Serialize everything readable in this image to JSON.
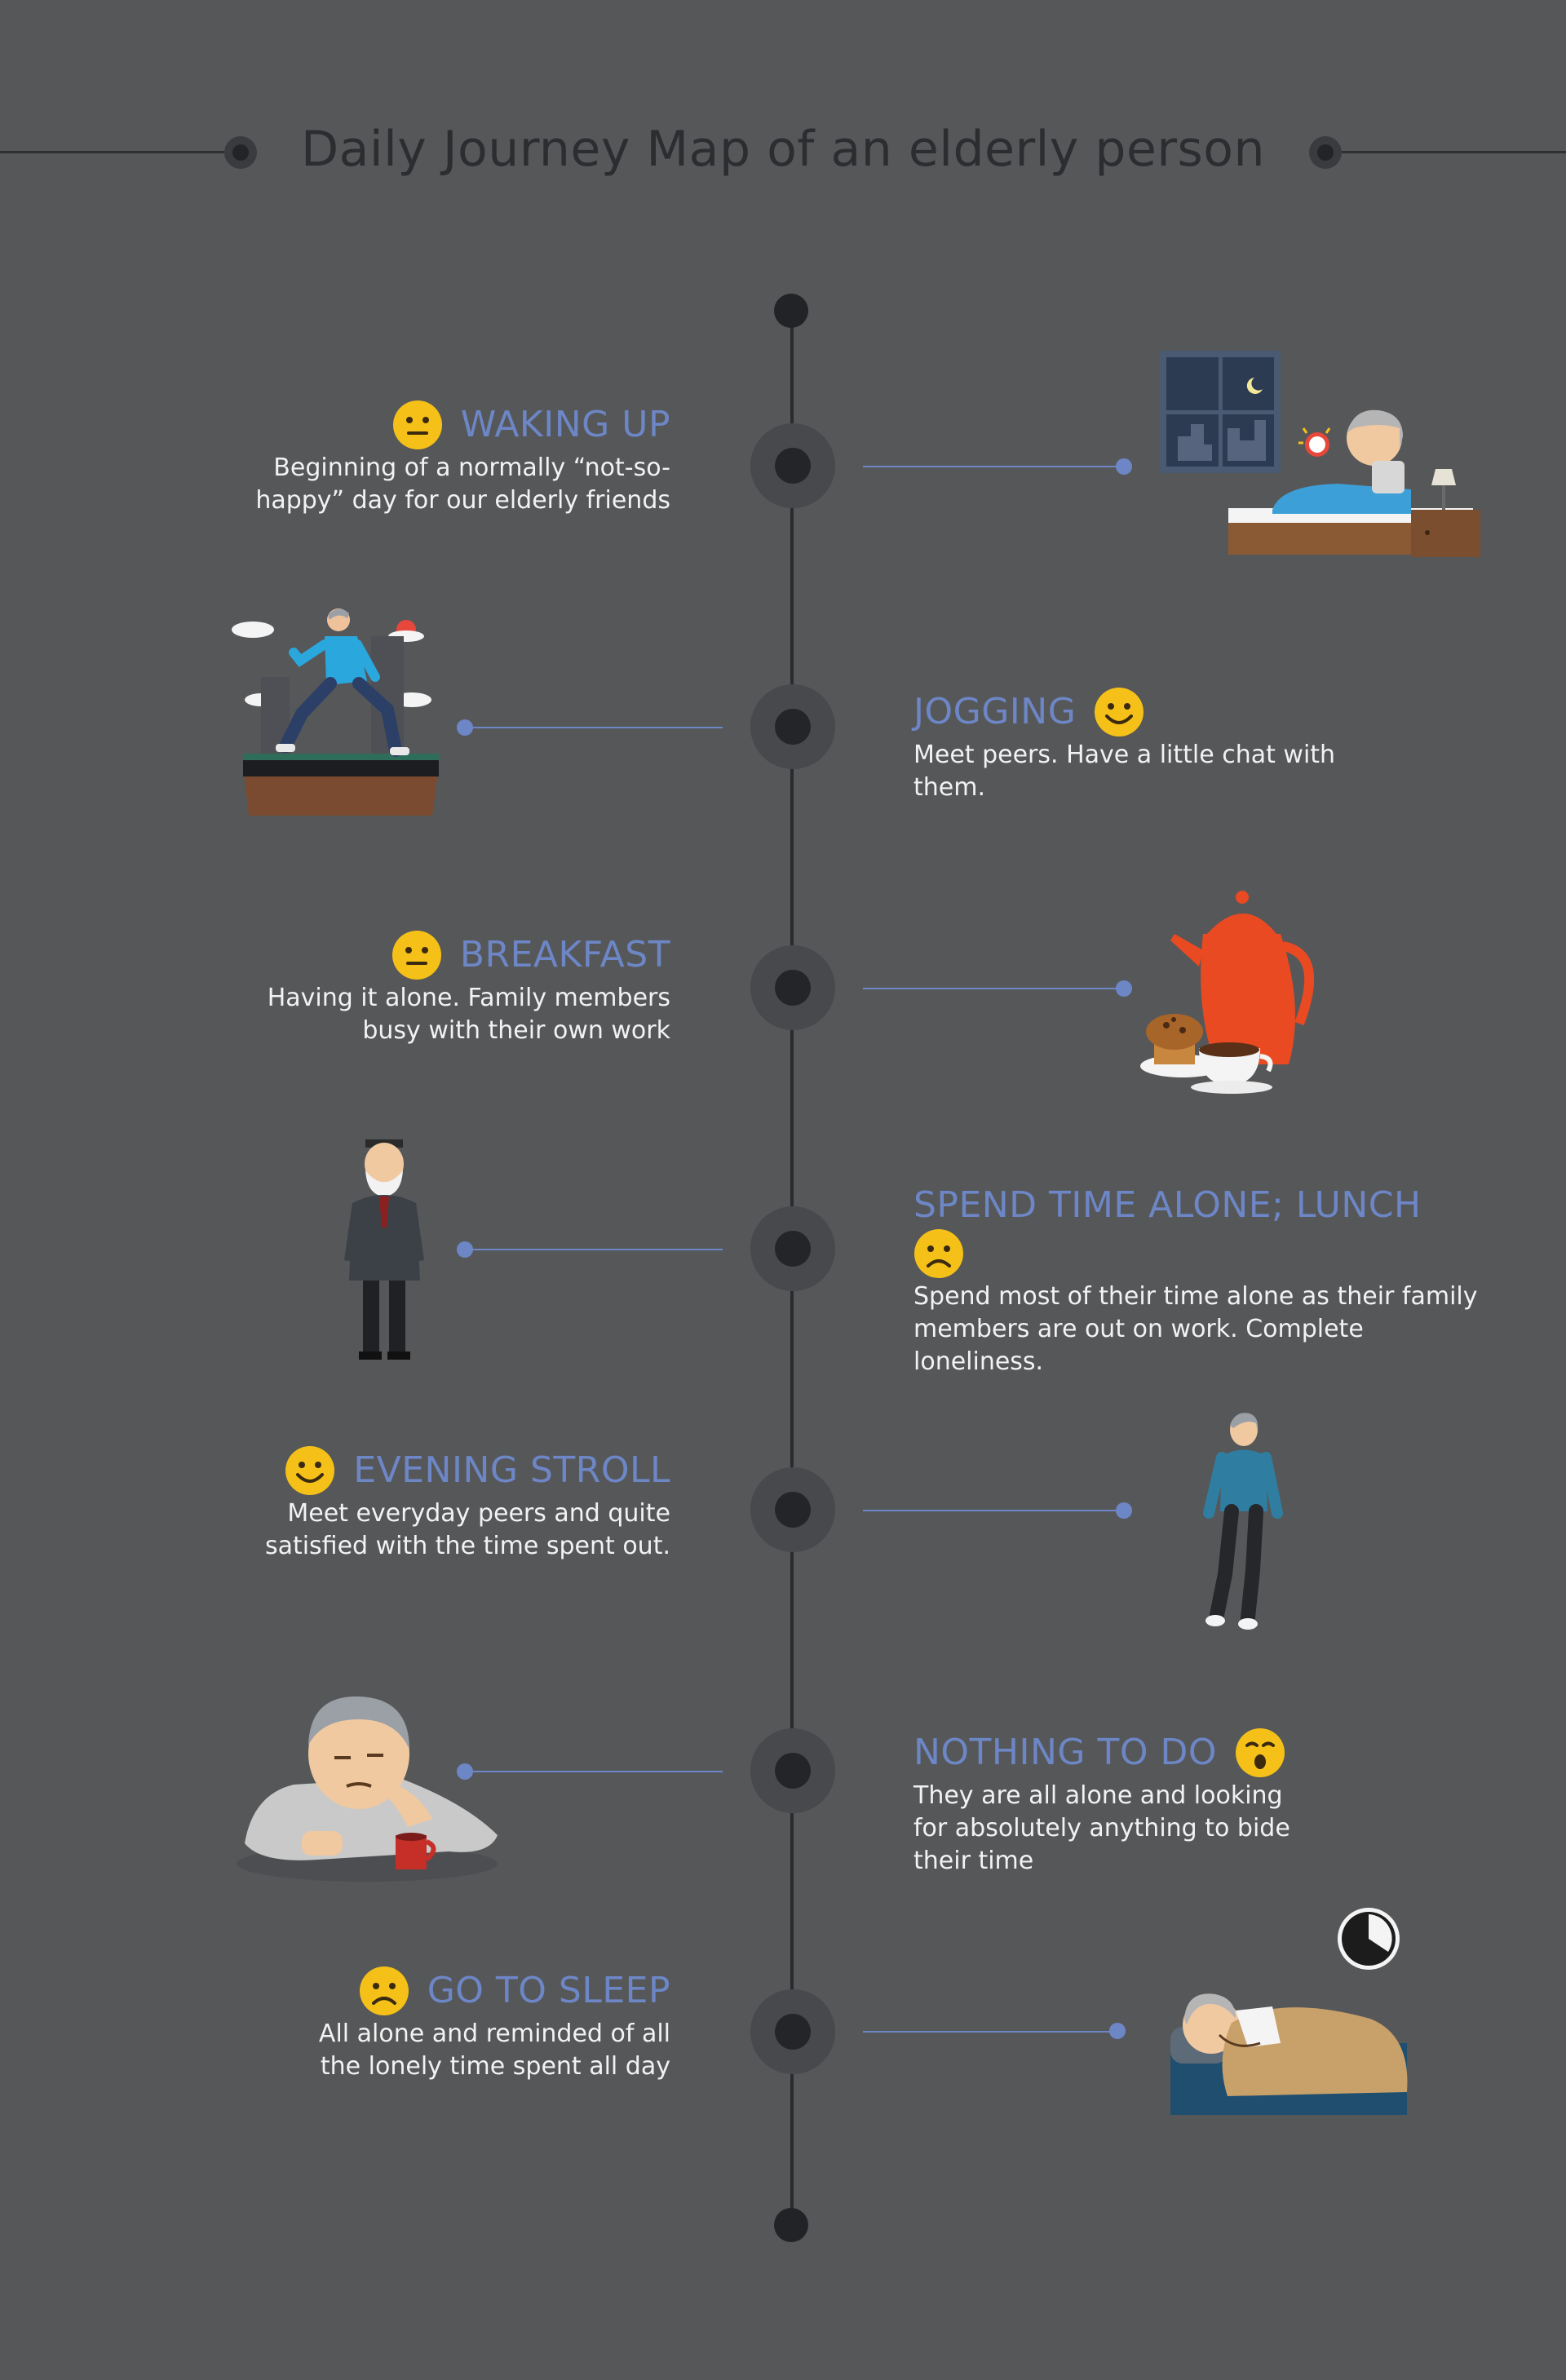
{
  "title": "Daily Journey Map of an elderly person",
  "colors": {
    "background": "#565759",
    "accent": "#6d86c6",
    "face": "#f5c118",
    "text": "#f2f2f2"
  },
  "steps": [
    {
      "title": "WAKING UP",
      "desc": [
        "Beginning of a normally “not-so-",
        "happy” day for our elderly friends"
      ],
      "mood": "neutral",
      "mood_icon": "neutral-face-icon",
      "side": "left",
      "illustration": "waking-up-illustration"
    },
    {
      "title": "JOGGING",
      "desc": [
        "Meet peers. Have a little chat with them."
      ],
      "mood": "happy",
      "mood_icon": "happy-face-icon",
      "side": "right",
      "illustration": "jogging-illustration"
    },
    {
      "title": "BREAKFAST",
      "desc": [
        "Having it alone. Family members",
        "busy with their own work"
      ],
      "mood": "neutral",
      "mood_icon": "neutral-face-icon",
      "side": "left",
      "illustration": "breakfast-illustration"
    },
    {
      "title": "SPEND TIME ALONE; LUNCH",
      "desc": [
        "Spend most of their time alone as their family",
        "members are out on work. Complete loneliness."
      ],
      "mood": "sad",
      "mood_icon": "sad-face-icon",
      "side": "right",
      "illustration": "elderly-man-illustration"
    },
    {
      "title": "EVENING STROLL",
      "desc": [
        "Meet everyday peers and quite",
        "satisfied with the time spent out."
      ],
      "mood": "happy",
      "mood_icon": "happy-face-icon",
      "side": "left",
      "illustration": "walking-man-illustration"
    },
    {
      "title": "NOTHING TO DO",
      "desc": [
        "They are all alone and looking",
        "for absolutely anything to bide",
        "their time"
      ],
      "mood": "bored",
      "mood_icon": "yawning-face-icon",
      "side": "right",
      "illustration": "bored-man-illustration"
    },
    {
      "title": "GO TO SLEEP",
      "desc": [
        "All alone and reminded of all",
        "the lonely time spent all day"
      ],
      "mood": "sad",
      "mood_icon": "sad-face-icon",
      "side": "left",
      "illustration": "sleeping-illustration"
    }
  ]
}
